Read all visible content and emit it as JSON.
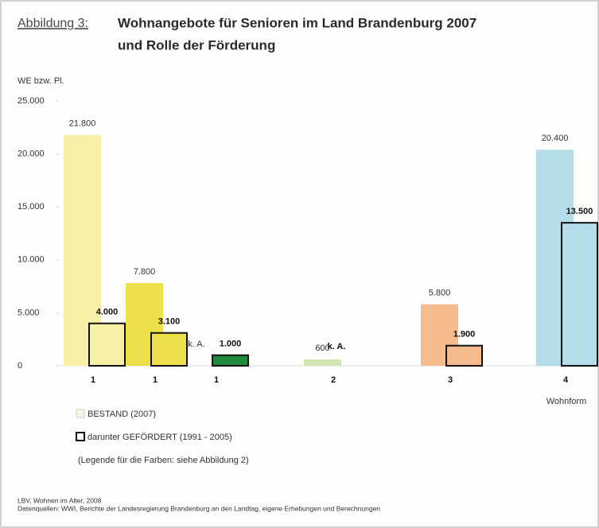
{
  "header": {
    "label": "Abbildung 3:",
    "title_lines": [
      "Wohnangebote für Senioren im Land Brandenburg 2007",
      "und Rolle der Förderung"
    ]
  },
  "chart_data": {
    "type": "bar",
    "ylabel": "WE bzw. Pl.",
    "xlabel": "Wohnform",
    "categories": [
      "1",
      "1",
      "1",
      "2",
      "3",
      "4"
    ],
    "series": [
      {
        "name": "BESTAND (2007)",
        "colors": [
          "#f6f0a8",
          "#eee04a",
          "#1f8a3c",
          "#cfe6b0",
          "#f5bb8e",
          "#b5dde9"
        ],
        "edge": "none",
        "values": [
          21800,
          7800,
          null,
          600,
          5800,
          20400
        ],
        "value_labels": [
          "21.800",
          "7.800",
          "k. A.",
          "600",
          "5.800",
          "20.400"
        ]
      },
      {
        "name": "darunter GEFÖRDERT (1991 - 2005)",
        "colors": [
          "#f6f0a8",
          "#eee04a",
          "#1f8a3c",
          "#cfe6b0",
          "#f5bb8e",
          "#b5dde9"
        ],
        "edge": "#111111",
        "values": [
          4000,
          3100,
          1000,
          null,
          1900,
          13500
        ],
        "value_labels": [
          "4.000",
          "3.100",
          "1.000",
          "k. A.",
          "1.900",
          "13.500"
        ]
      }
    ],
    "ylim": [
      0,
      25000
    ],
    "yticks": [
      0,
      {
        "value": 5000,
        "label": "5.000"
      },
      {
        "value": 10000,
        "label": "10.000"
      },
      {
        "value": 15000,
        "label": "15.000"
      },
      {
        "value": 20000,
        "label": "20.000"
      },
      {
        "value": 25000,
        "label": "25.000"
      }
    ],
    "grid": false
  },
  "note": "(Legende für die Farben: siehe Abbildung 2)",
  "source": [
    "LBV, Wohnen im Alter, 2008",
    "Datenquellen: WWI, Berichte der Landesregierung Brandenburg an den Landtag, eigene Erhebungen und Berechnungen"
  ]
}
